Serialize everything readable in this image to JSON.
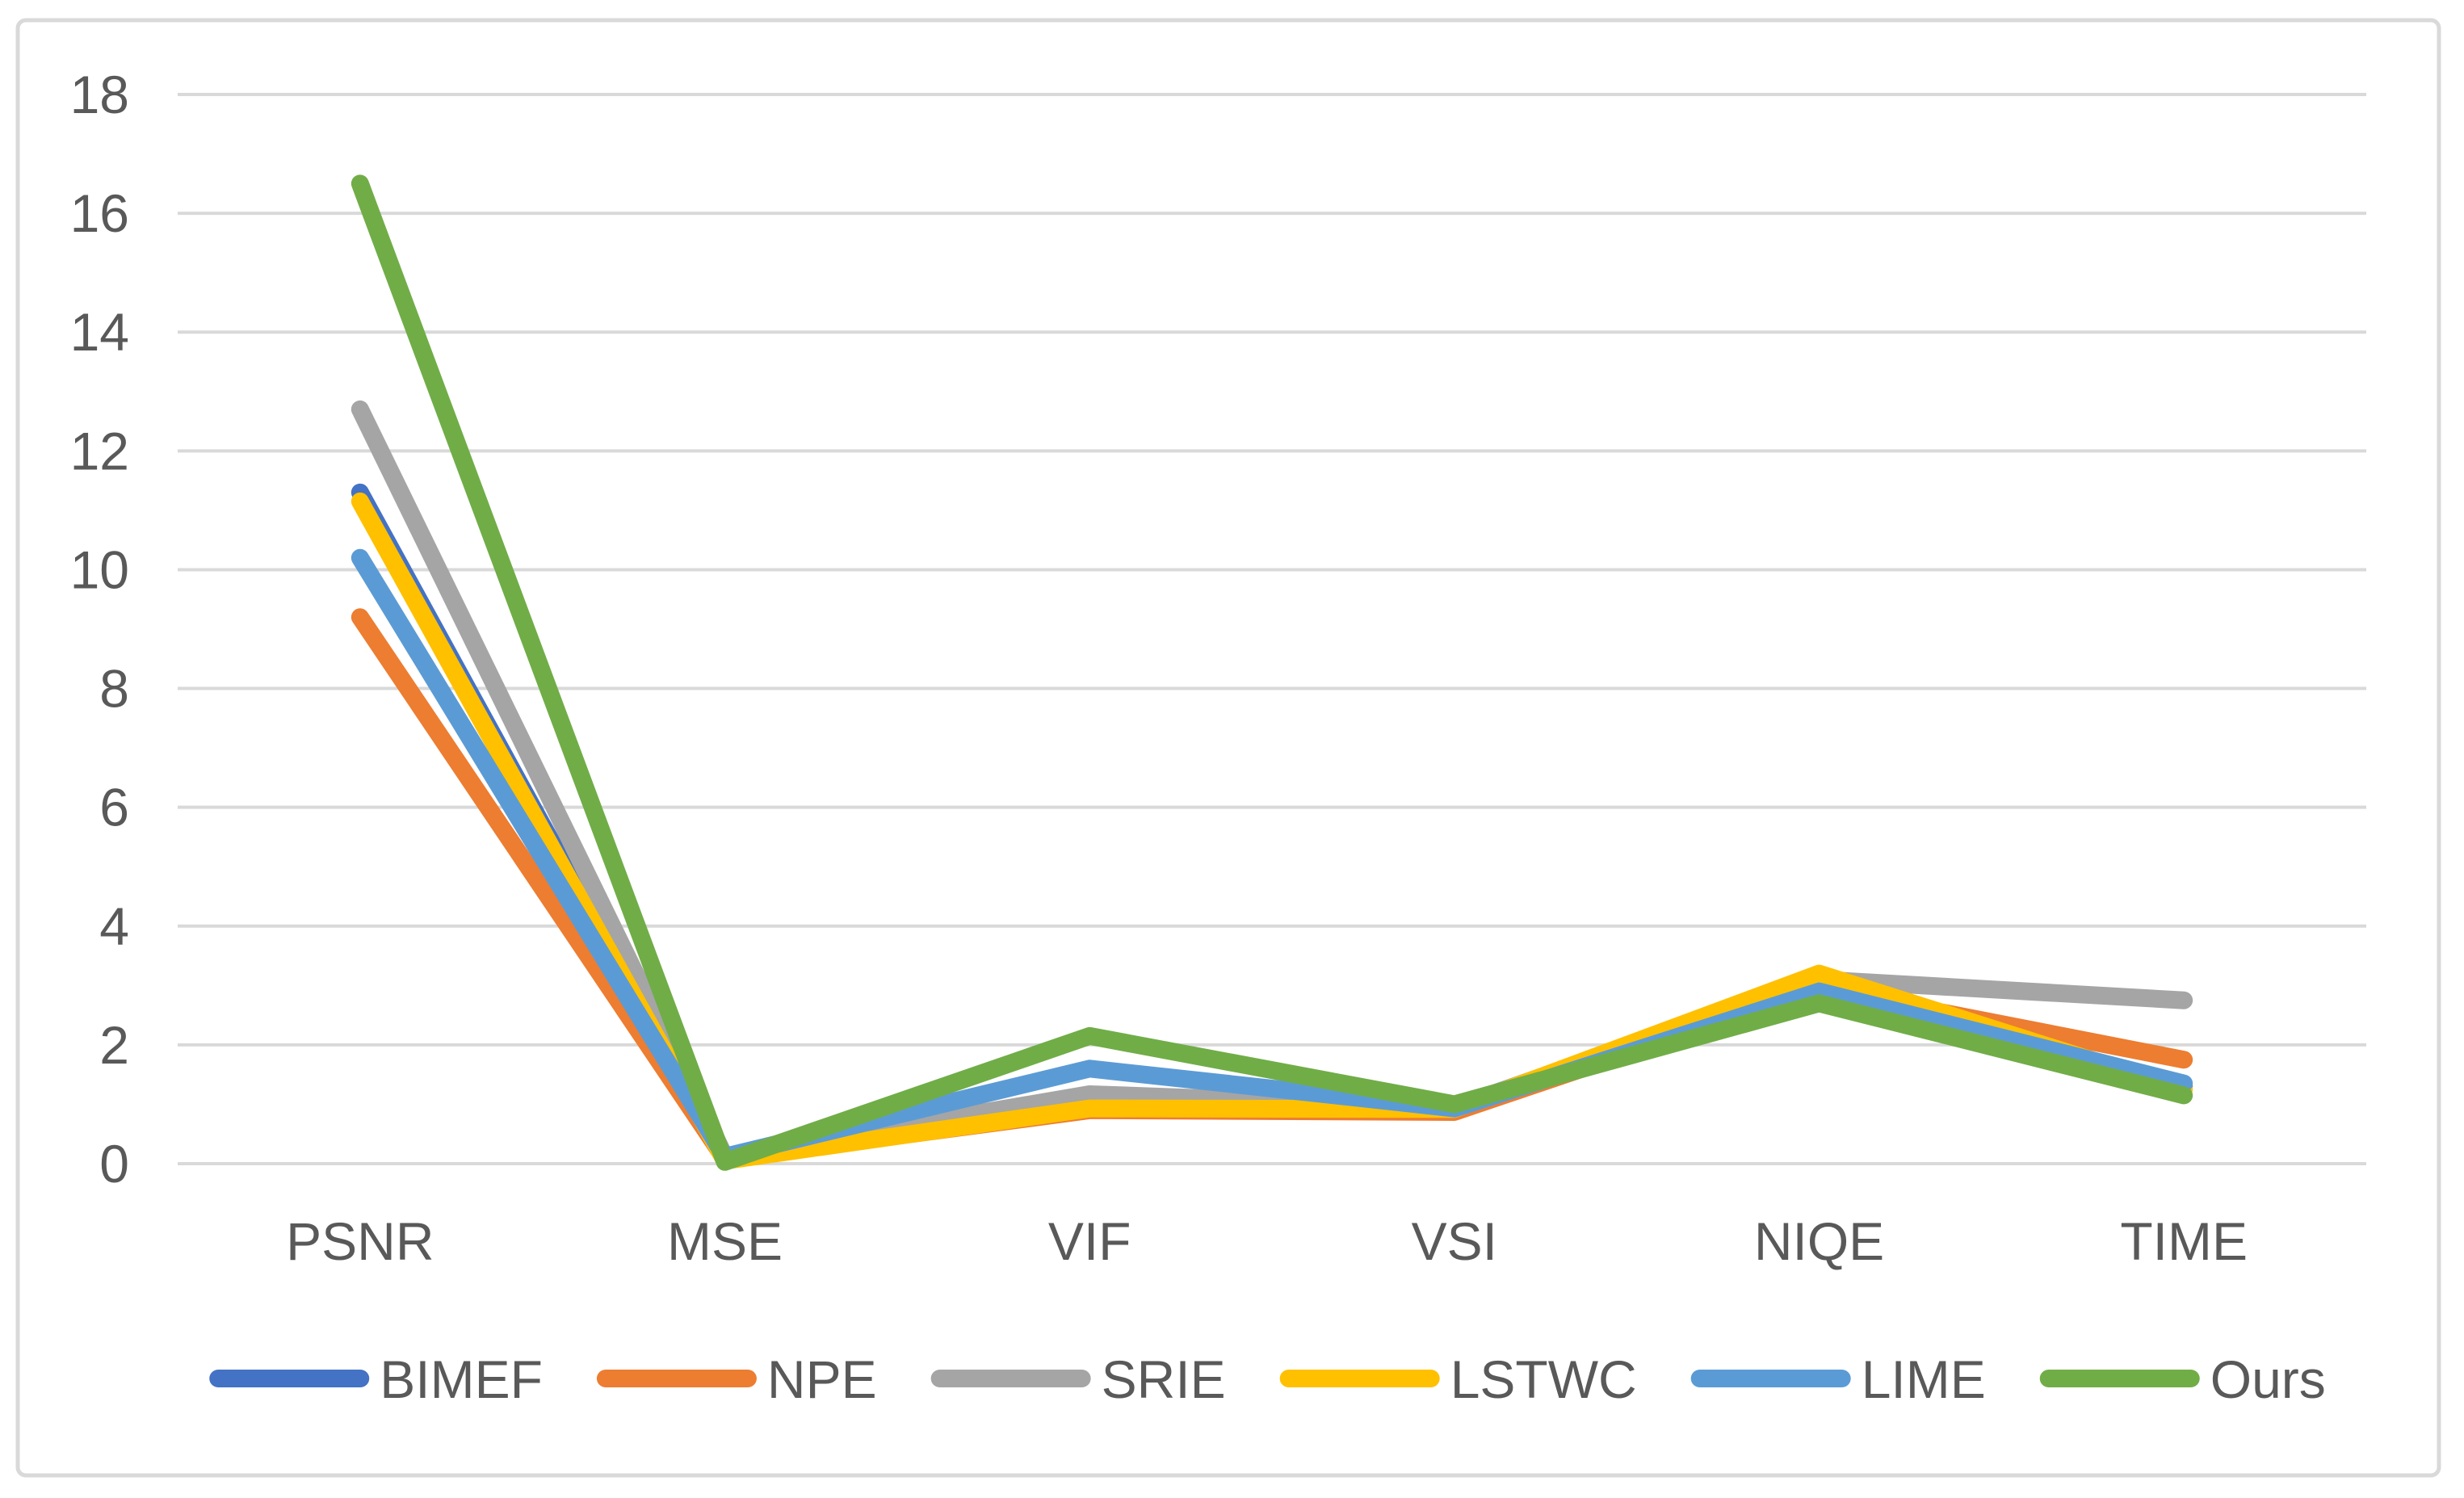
{
  "chart_data": {
    "type": "line",
    "title": "",
    "xlabel": "",
    "ylabel": "",
    "categories": [
      "PSNR",
      "MSE",
      "VIF",
      "VSI",
      "NIQE",
      "TIME"
    ],
    "series": [
      {
        "name": "BIMEF",
        "color": "#4472C4",
        "values": [
          11.3,
          0.1,
          1.05,
          0.95,
          2.85,
          1.3
        ]
      },
      {
        "name": "NPE",
        "color": "#ED7D31",
        "values": [
          9.2,
          0.08,
          0.9,
          0.87,
          2.95,
          1.75
        ]
      },
      {
        "name": "SRIE",
        "color": "#A5A5A5",
        "values": [
          12.7,
          0.12,
          1.17,
          0.95,
          3.1,
          2.75
        ]
      },
      {
        "name": "LSTWC",
        "color": "#FFC000",
        "values": [
          11.15,
          0.05,
          0.93,
          0.92,
          3.2,
          1.25
        ]
      },
      {
        "name": "LIME",
        "color": "#5B9BD5",
        "values": [
          10.2,
          0.12,
          1.6,
          0.93,
          2.9,
          1.35
        ]
      },
      {
        "name": "Ours",
        "color": "#70AD47",
        "values": [
          16.5,
          0.03,
          2.15,
          1.0,
          2.7,
          1.15
        ]
      }
    ],
    "ylim": [
      0,
      18
    ],
    "ytick_step": 2,
    "ytick_labels": [
      "0",
      "2",
      "4",
      "6",
      "8",
      "10",
      "12",
      "14",
      "16",
      "18"
    ],
    "grid": true,
    "legend_position": "bottom"
  },
  "style_colors": {
    "gridline": "#D9D9D9",
    "frame_border": "#D9D9D9",
    "label_text": "#595959",
    "background": "#FFFFFF"
  }
}
